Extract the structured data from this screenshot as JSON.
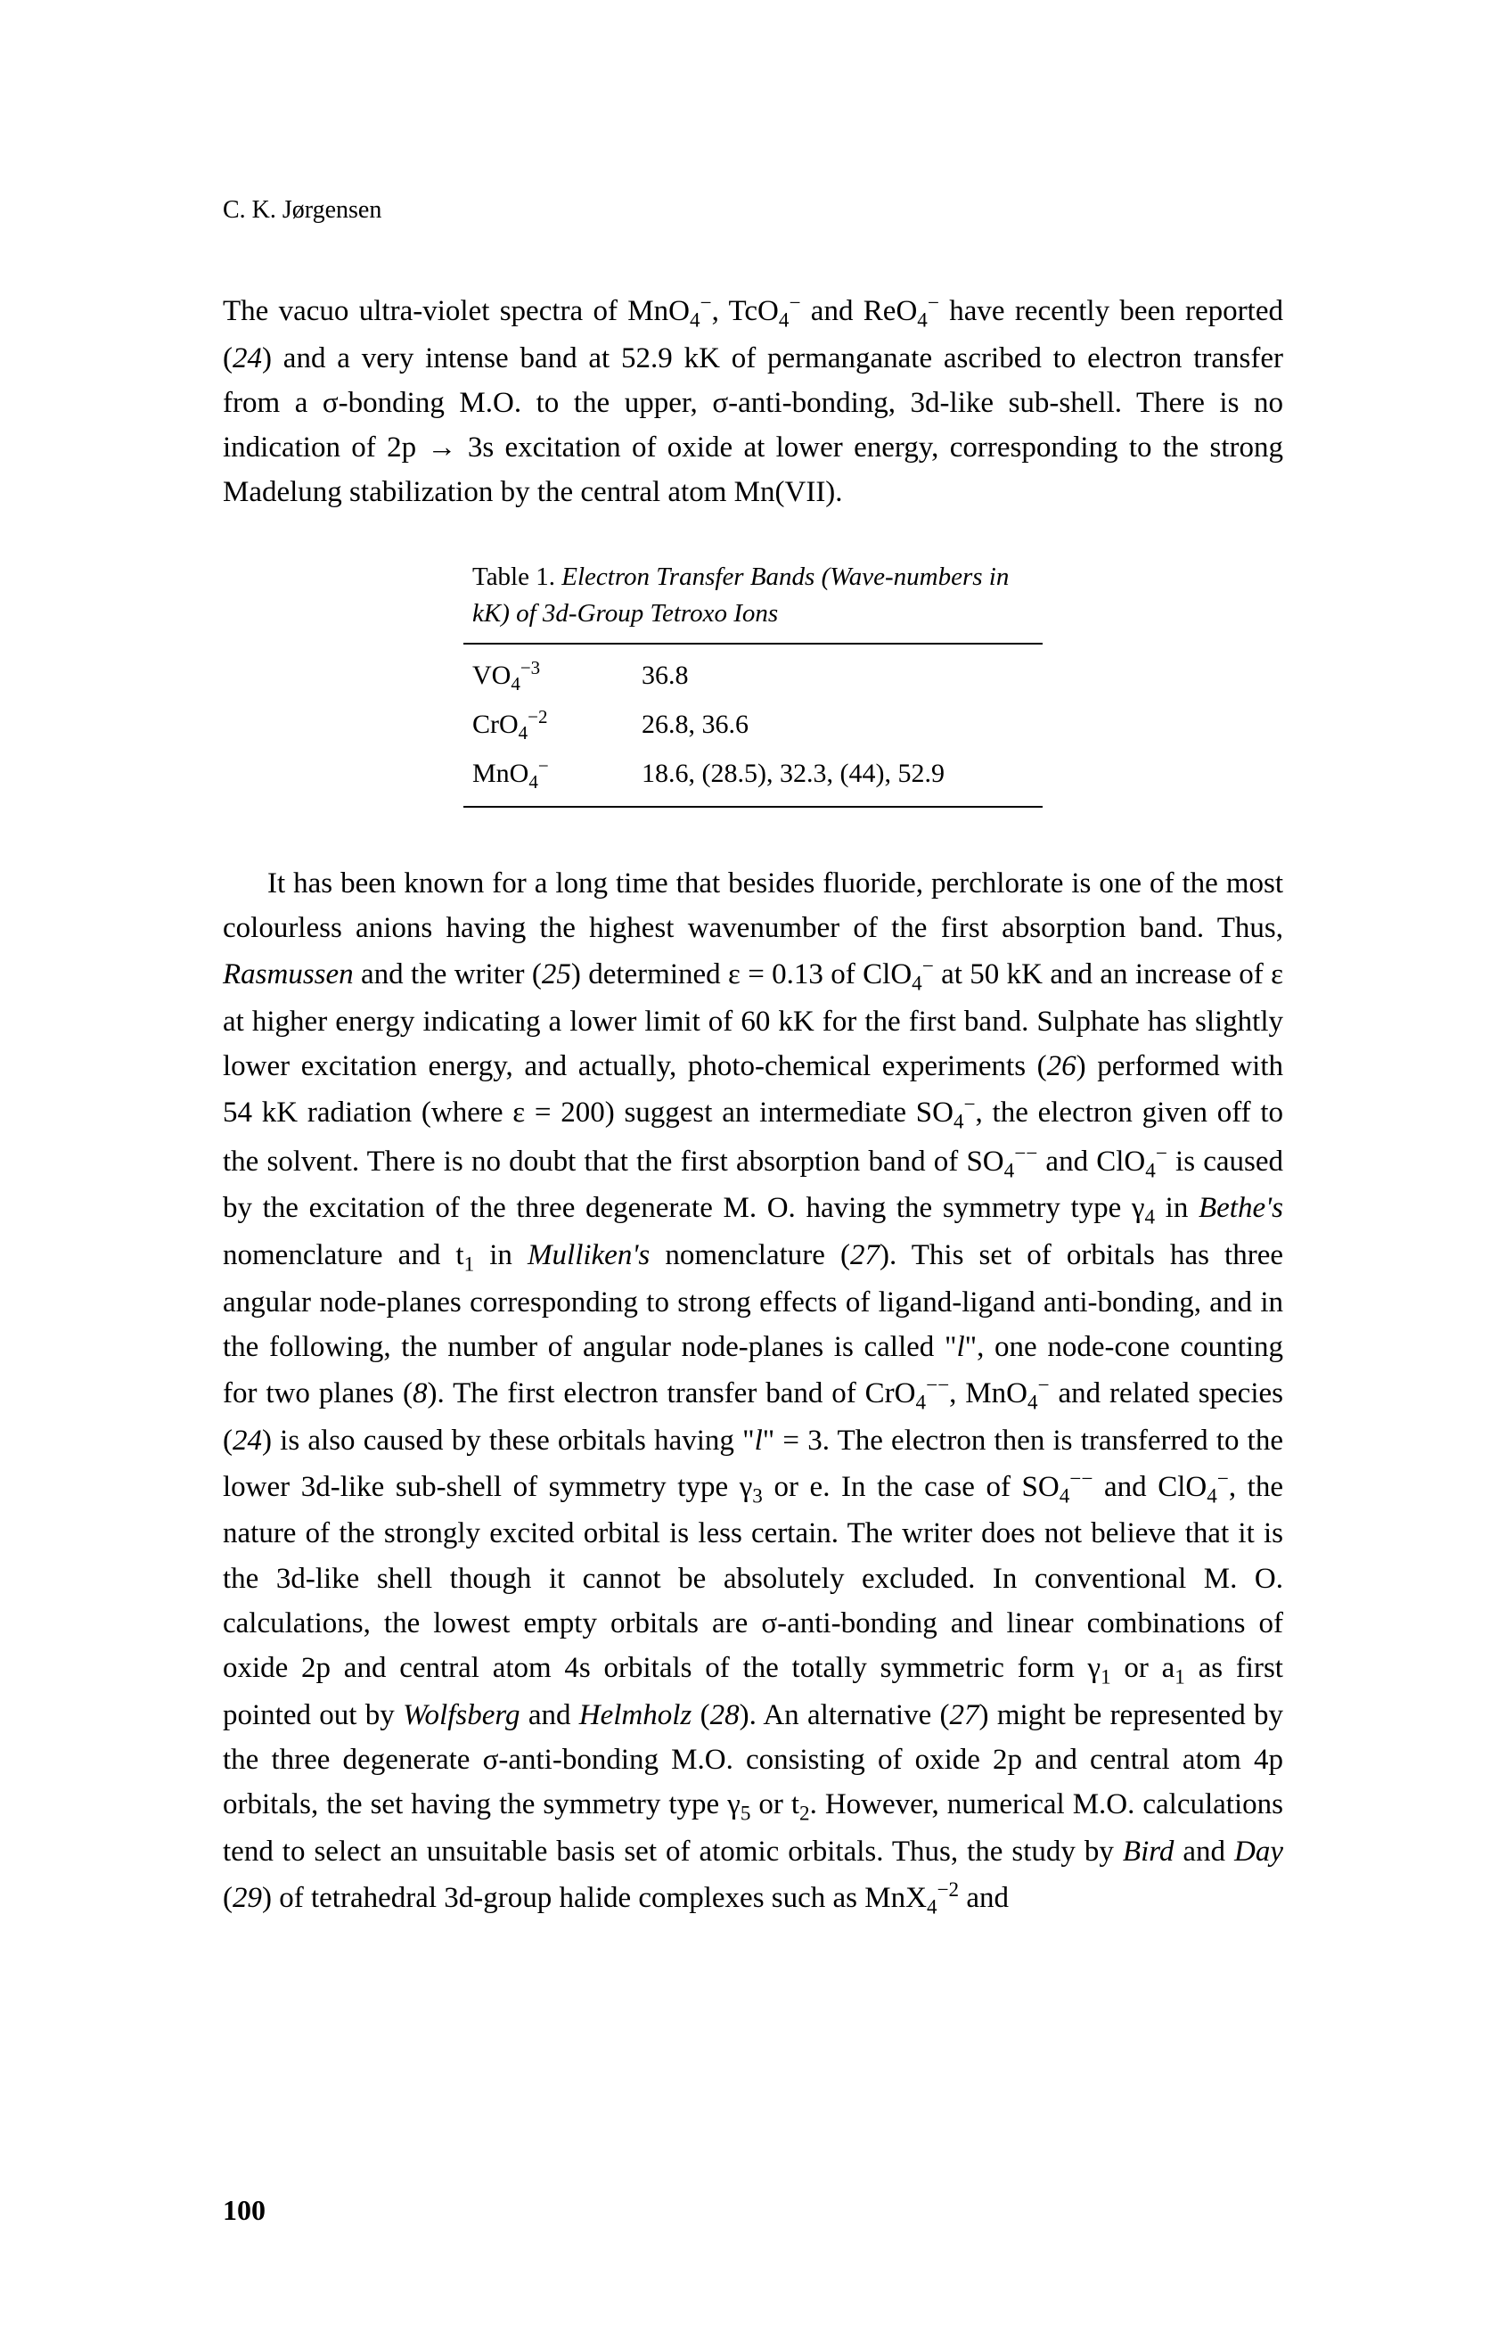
{
  "author": "C. K. Jørgensen",
  "para1_html": "The vacuo ultra-violet spectra of MnO<span class='sub'>4</span><span class='sup'>−</span>, TcO<span class='sub'>4</span><span class='sup'>−</span> and ReO<span class='sub'>4</span><span class='sup'>−</span> have recently been reported (<span class='italic'>24</span>) and a very intense band at 52.9 kK of permanganate ascribed to electron transfer from a σ-bonding M.O. to the upper, σ-anti-bonding, 3d-like sub-shell. There is no indication of 2p → 3s excitation of oxide at lower energy, corresponding to the strong Madelung stabilization by the central atom Mn(VII).",
  "table": {
    "caption_html": "Table 1. <span class='italic'>Electron Transfer Bands (Wave-numbers in kK) of 3d-Group Tetroxo Ions</span>",
    "rows": [
      {
        "species_html": "VO<span class='sub'>4</span><span class='sup'>−3</span>",
        "values": "36.8"
      },
      {
        "species_html": "CrO<span class='sub'>4</span><span class='sup'>−2</span>",
        "values": "26.8, 36.6"
      },
      {
        "species_html": "MnO<span class='sub'>4</span><span class='sup'>−</span>",
        "values": "18.6, (28.5), 32.3, (44), 52.9"
      }
    ]
  },
  "para2_html": "It has been known for a long time that besides fluoride, perchlorate is one of the most colourless anions having the highest wavenumber of the first absorption band. Thus, <span class='italic'>Rasmussen</span> and the writer (<span class='italic'>25</span>) determined ε = 0.13 of ClO<span class='sub'>4</span><span class='sup'>−</span> at 50 kK and an increase of ε at higher energy indicating a lower limit of 60 kK for the first band. Sulphate has slightly lower excitation energy, and actually, photo-chemical experiments (<span class='italic'>26</span>) performed with 54 kK radiation (where ε = 200) suggest an intermediate SO<span class='sub'>4</span><span class='sup'>−</span>, the electron given off to the solvent. There is no doubt that the first absorption band of SO<span class='sub'>4</span><span class='sup'>−−</span> and ClO<span class='sub'>4</span><span class='sup'>−</span> is caused by the excitation of the three degenerate M. O. having the symmetry type γ<span class='sub'>4</span> in <span class='italic'>Bethe's</span> nomenclature and t<span class='sub'>1</span> in <span class='italic'>Mulliken's</span> nomenclature (<span class='italic'>27</span>). This set of orbitals has three angular node-planes corresponding to strong effects of ligand-ligand anti-bonding, and in the following, the number of angular node-planes is called \"<span class='italic'>l</span>\", one node-cone counting for two planes (<span class='italic'>8</span>). The first electron transfer band of CrO<span class='sub'>4</span><span class='sup'>−−</span>, MnO<span class='sub'>4</span><span class='sup'>−</span> and related species (<span class='italic'>24</span>) is also caused by these orbitals having \"<span class='italic'>l</span>\" = 3. The electron then is transferred to the lower 3d-like sub-shell of symmetry type γ<span class='sub'>3</span> or e. In the case of SO<span class='sub'>4</span><span class='sup'>−−</span> and ClO<span class='sub'>4</span><span class='sup'>−</span>, the nature of the strongly excited orbital is less certain. The writer does not believe that it is the 3d-like shell though it cannot be absolutely excluded. In conventional M. O. calculations, the lowest empty orbitals are σ-anti-bonding and linear combinations of oxide 2p and central atom 4s orbitals of the totally symmetric form γ<span class='sub'>1</span> or a<span class='sub'>1</span> as first pointed out by <span class='italic'>Wolfsberg</span> and <span class='italic'>Helmholz</span> (<span class='italic'>28</span>). An alternative (<span class='italic'>27</span>) might be represented by the three degenerate σ-anti-bonding M.O. consisting of oxide 2p and central atom 4p orbitals, the set having the symmetry type γ<span class='sub'>5</span> or t<span class='sub'>2</span>. However, numerical M.O. calculations tend to select an unsuitable basis set of atomic orbitals. Thus, the study by <span class='italic'>Bird</span> and <span class='italic'>Day</span> (<span class='italic'>29</span>) of tetrahedral 3d-group halide complexes such as MnX<span class='sub'>4</span><span class='sup'>−2</span> and",
  "page_number": "100"
}
